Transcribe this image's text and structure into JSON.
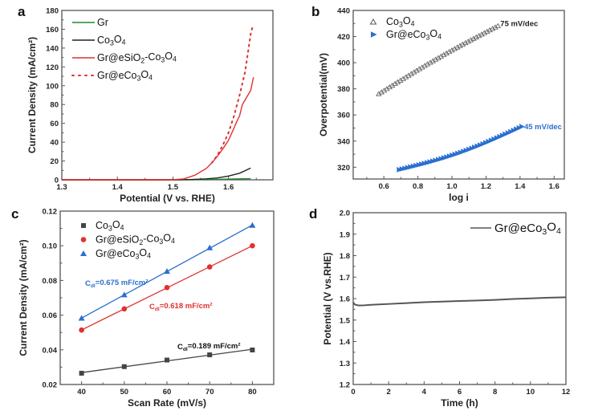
{
  "figure": {
    "panel_labels": [
      "a",
      "b",
      "c",
      "d"
    ]
  },
  "colors": {
    "green": "#1e8a2a",
    "black": "#222222",
    "red": "#e03030",
    "blue": "#2a6fd0",
    "gray": "#555555"
  },
  "chart_data": [
    {
      "id": "a",
      "type": "line",
      "title": "",
      "xlabel": "Potential (V vs. RHE)",
      "ylabel": "Current Density (mA/cm²)",
      "xlim": [
        1.3,
        1.68
      ],
      "ylim": [
        0,
        180
      ],
      "xticks": [
        "1.3",
        "1.4",
        "1.5",
        "1.6"
      ],
      "yticks": [
        "0",
        "20",
        "40",
        "60",
        "80",
        "100",
        "120",
        "140",
        "160",
        "180"
      ],
      "legend_position": "top-left",
      "series": [
        {
          "name": "Gr",
          "style": "solid",
          "color": "#1e8a2a",
          "x": [
            1.3,
            1.5,
            1.55,
            1.58,
            1.6,
            1.62,
            1.64
          ],
          "y": [
            0,
            0,
            0.2,
            0.5,
            0.8,
            1.0,
            1.2
          ]
        },
        {
          "name": "Co3O4",
          "style": "solid",
          "color": "#222222",
          "x": [
            1.3,
            1.5,
            1.53,
            1.56,
            1.58,
            1.6,
            1.62,
            1.64
          ],
          "y": [
            0,
            0,
            0.3,
            1.0,
            2.0,
            4.0,
            7.0,
            12.5
          ]
        },
        {
          "name": "Gr@eSiO2-Co3O4",
          "style": "solid",
          "color": "#e03030",
          "x": [
            1.3,
            1.5,
            1.52,
            1.54,
            1.56,
            1.57,
            1.58,
            1.59,
            1.6,
            1.61,
            1.615,
            1.62,
            1.625,
            1.63,
            1.635,
            1.64,
            1.645
          ],
          "y": [
            0,
            0,
            1,
            5,
            12,
            18,
            25,
            33,
            42,
            55,
            62,
            68,
            80,
            85,
            90,
            95,
            109
          ]
        },
        {
          "name": "Gr@eCo3O4",
          "style": "dotted",
          "color": "#e03030",
          "x": [
            1.57,
            1.58,
            1.59,
            1.6,
            1.61,
            1.62,
            1.63,
            1.635,
            1.64,
            1.643
          ],
          "y": [
            18,
            26,
            37,
            50,
            68,
            90,
            115,
            135,
            155,
            162
          ]
        }
      ]
    },
    {
      "id": "b",
      "type": "scatter",
      "title": "",
      "xlabel": "log i",
      "ylabel": "Overpotential(mV)",
      "xlim": [
        0.42,
        1.66
      ],
      "ylim": [
        311,
        440
      ],
      "xticks": [
        "0.6",
        "0.8",
        "1.0",
        "1.2",
        "1.4",
        "1.6"
      ],
      "yticks": [
        "320",
        "340",
        "360",
        "380",
        "400",
        "420",
        "440"
      ],
      "legend_position": "top-left",
      "series": [
        {
          "name": "Co3O4",
          "marker": "triangle-up-open",
          "color": "#555555",
          "x_range": [
            0.57,
            1.27
          ],
          "y_range": [
            376,
            428
          ],
          "n_points": 45,
          "annotation": "75 mV/dec"
        },
        {
          "name": "Gr@eCo3O4",
          "marker": "triangle-right",
          "color": "#2a6fd0",
          "x_range": [
            0.69,
            1.41
          ],
          "y_range": [
            318,
            351
          ],
          "n_points": 45,
          "annotation": "45 mV/dec"
        }
      ]
    },
    {
      "id": "c",
      "type": "scatter",
      "title": "",
      "xlabel": "Scan Rate (mV/s)",
      "ylabel": "Current Density (mA/cm²)",
      "xlim": [
        35,
        85
      ],
      "ylim": [
        0.02,
        0.12
      ],
      "xticks": [
        "40",
        "50",
        "60",
        "70",
        "80"
      ],
      "yticks": [
        "0.02",
        "0.04",
        "0.06",
        "0.08",
        "0.10",
        "0.12"
      ],
      "legend_position": "top-left",
      "x": [
        40,
        50,
        60,
        70,
        80
      ],
      "series": [
        {
          "name": "Co3O4",
          "marker": "square",
          "color": "#444444",
          "values": [
            0.0265,
            0.0303,
            0.0341,
            0.0371,
            0.0399
          ],
          "annotation": "0.189 mF/cm²",
          "annotation_color": "#111111"
        },
        {
          "name": "Gr@eSiO2-Co3O4",
          "marker": "circle",
          "color": "#e03030",
          "values": [
            0.0514,
            0.0636,
            0.0759,
            0.0878,
            0.1
          ],
          "annotation": "0.618 mF/cm²",
          "annotation_color": "#e03030"
        },
        {
          "name": "Gr@eCo3O4",
          "marker": "triangle-up",
          "color": "#2a6fd0",
          "values": [
            0.0582,
            0.0717,
            0.0852,
            0.0988,
            0.1118
          ],
          "annotation": "0.675 mF/cm²",
          "annotation_color": "#2a6fd0"
        }
      ],
      "annotation_prefix": "C",
      "annotation_sub": "dl"
    },
    {
      "id": "d",
      "type": "line",
      "title": "",
      "xlabel": "Time (h)",
      "ylabel": "Potential (V vs.RHE)",
      "xlim": [
        0,
        12
      ],
      "ylim": [
        1.2,
        2.0
      ],
      "xticks": [
        "0",
        "2",
        "4",
        "6",
        "8",
        "10",
        "12"
      ],
      "yticks": [
        "1.2",
        "1.3",
        "1.4",
        "1.5",
        "1.6",
        "1.7",
        "1.8",
        "1.9",
        "2.0"
      ],
      "legend_position": "top-right",
      "series": [
        {
          "name": "Gr@eCo3O4",
          "style": "solid",
          "color": "#555555",
          "x": [
            0,
            0.1,
            0.3,
            0.5,
            1,
            2,
            3,
            4,
            5,
            6,
            7,
            8,
            9,
            10,
            11,
            12
          ],
          "y": [
            1.582,
            1.572,
            1.568,
            1.568,
            1.571,
            1.575,
            1.579,
            1.583,
            1.586,
            1.589,
            1.591,
            1.594,
            1.598,
            1.601,
            1.604,
            1.606
          ]
        }
      ]
    }
  ]
}
